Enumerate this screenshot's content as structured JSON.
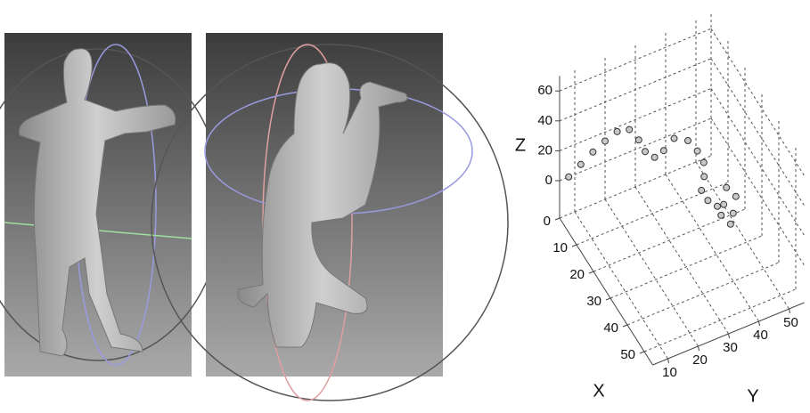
{
  "chart_data": {
    "type": "scatter3d",
    "xlabel": "X",
    "ylabel": "Y",
    "zlabel": "Z",
    "x": [
      0,
      0,
      0,
      0,
      0,
      0,
      2,
      4,
      6,
      6,
      5,
      6,
      8,
      10,
      12,
      14,
      16,
      18,
      20,
      18,
      20,
      22,
      24,
      22
    ],
    "y": [
      8,
      12,
      16,
      20,
      24,
      28,
      30,
      31,
      33,
      36,
      40,
      44,
      46,
      47,
      46,
      44,
      45,
      47,
      48,
      50,
      52,
      50,
      48,
      46
    ],
    "z": [
      0,
      5,
      10,
      14,
      17,
      15,
      10,
      5,
      3,
      5,
      8,
      5,
      0,
      -5,
      -10,
      -14,
      -18,
      -20,
      -16,
      -10,
      -14,
      -20,
      -22,
      -18
    ],
    "xlim": [
      0,
      55
    ],
    "ylim": [
      5,
      55
    ],
    "zlim": [
      -25,
      70
    ],
    "xticks": [
      0,
      10,
      20,
      30,
      40,
      50
    ],
    "yticks": [
      10,
      20,
      30,
      40,
      50
    ],
    "zticks": [
      0,
      20,
      40,
      60
    ],
    "grid": true,
    "marker_color": "#c8c8c8",
    "marker_edge": "#333333"
  }
}
